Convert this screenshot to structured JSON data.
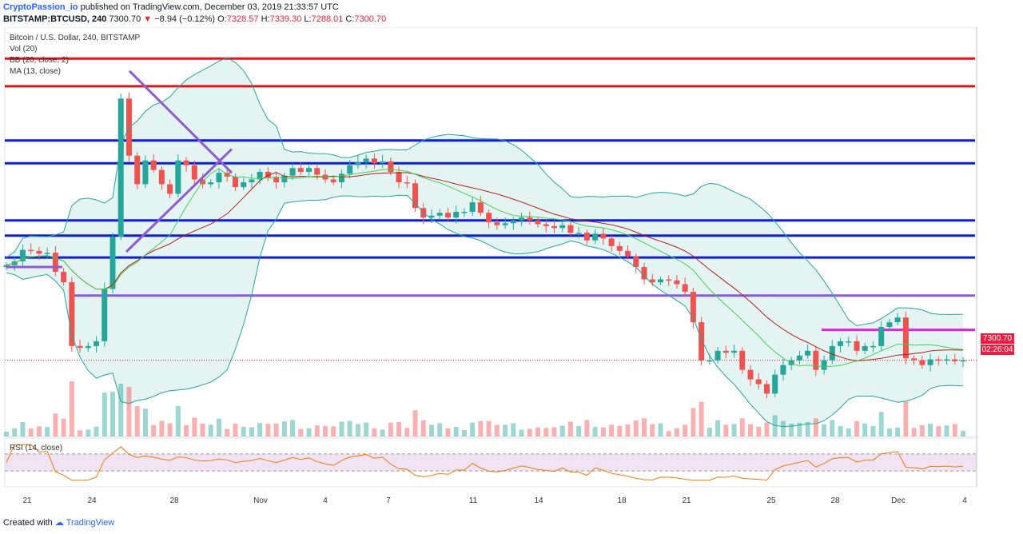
{
  "header": {
    "author": "CryptoPassion_io",
    "published_text": "published on TradingView.com, December 03, 2019 21:33:57 UTC",
    "symbol": "BITSTAMP:BTCUSD, 240",
    "last": "7300.70",
    "change": "−8.94 (−0.12%)",
    "o_label": "O:",
    "o": "7328.57",
    "h_label": "H:",
    "h": "7339.30",
    "l_label": "L:",
    "l": "7288.01",
    "c_label": "C:",
    "c": "7300.70"
  },
  "legend": {
    "title": "Bitcoin / U.S. Dollar, 240, BITSTAMP",
    "vol": "Vol (20)",
    "bb": "BB (20, close, 2)",
    "ma": "MA (13, close)",
    "rsi": "RSI (14, close)"
  },
  "price_tag": "7300.70",
  "timer_tag": "02:26:04",
  "footer": {
    "prefix": "Created with",
    "brand": "TradingView"
  },
  "colors": {
    "up": "#26a69a",
    "down": "#ef5350",
    "blue_line": "#0d1fd6",
    "red_line": "#e8101a",
    "purple": "#8e5bd0",
    "magenta": "#e91ee0",
    "rsi": "#f57c00",
    "bb_fill": "#b2dfdb"
  },
  "chart_data": {
    "type": "candlestick",
    "x_ticks": [
      "21",
      "24",
      "28",
      "Nov",
      "4",
      "7",
      "11",
      "14",
      "18",
      "21",
      "25",
      "28",
      "Dec",
      "4"
    ],
    "closes": [
      8300,
      8340,
      8460,
      8450,
      8420,
      8430,
      8230,
      8120,
      7450,
      7430,
      7450,
      7500,
      8050,
      8600,
      10050,
      9450,
      9150,
      9400,
      9300,
      9150,
      9050,
      9400,
      9350,
      9200,
      9150,
      9170,
      9270,
      9230,
      9120,
      9170,
      9200,
      9280,
      9220,
      9170,
      9240,
      9320,
      9280,
      9320,
      9250,
      9200,
      9170,
      9260,
      9350,
      9380,
      9420,
      9370,
      9390,
      9280,
      9170,
      9160,
      8900,
      8800,
      8820,
      8850,
      8800,
      8860,
      8860,
      8960,
      8850,
      8750,
      8720,
      8740,
      8770,
      8800,
      8770,
      8730,
      8710,
      8690,
      8720,
      8640,
      8640,
      8560,
      8630,
      8580,
      8500,
      8450,
      8390,
      8280,
      8150,
      8120,
      8150,
      8140,
      8100,
      8020,
      7700,
      7300,
      7300,
      7400,
      7380,
      7400,
      7200,
      7100,
      7050,
      6950,
      7150,
      7250,
      7300,
      7350,
      7400,
      7200,
      7300,
      7450,
      7500,
      7500,
      7400,
      7450,
      7450,
      7650,
      7700,
      7750,
      7320,
      7300,
      7250,
      7310,
      7300,
      7310,
      7290,
      7301
    ],
    "resistance_levels": [
      10470,
      10180,
      9610,
      9370,
      8770,
      8610,
      8380,
      7980,
      7620
    ],
    "rsi_bands": [
      70,
      30
    ],
    "last_price": 7300.7
  }
}
